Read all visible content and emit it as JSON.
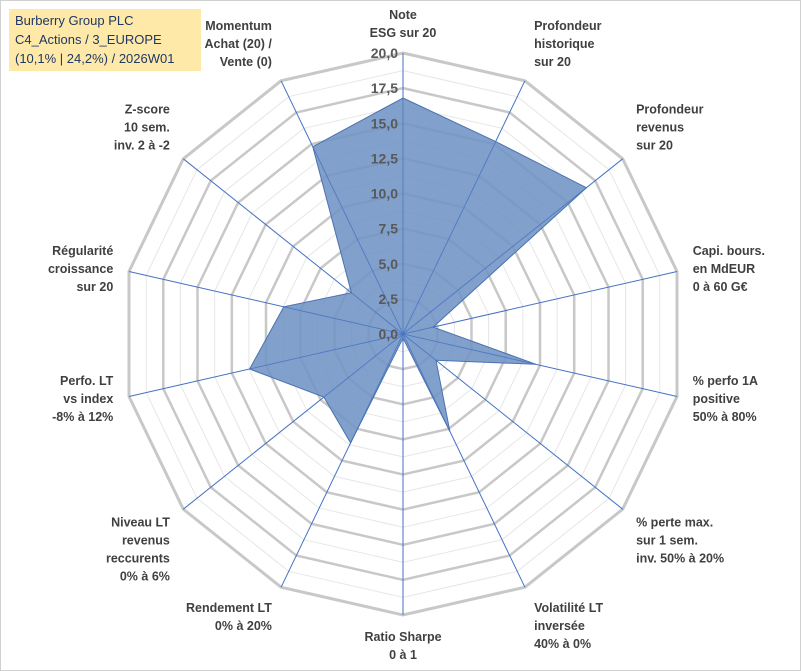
{
  "title_lines": [
    "Burberry Group PLC",
    "C4_Actions / 3_EUROPE",
    "(10,1% | 24,2%) / 2026W01"
  ],
  "chart_data": {
    "type": "radar",
    "rmin": 0,
    "rmax": 20,
    "ticks": [
      "0,0",
      "2,5",
      "5,0",
      "7,5",
      "10,0",
      "12,5",
      "15,0",
      "17,5",
      "20,0"
    ],
    "tick_values": [
      0,
      2.5,
      5,
      7.5,
      10,
      12.5,
      15,
      17.5,
      20
    ],
    "axes": [
      {
        "label": [
          "Note",
          "ESG sur 20"
        ],
        "value": 16.8
      },
      {
        "label": [
          "Profondeur",
          "historique",
          "sur 20"
        ],
        "value": 15.2
      },
      {
        "label": [
          "Profondeur",
          "revenus",
          "sur 20"
        ],
        "value": 16.7
      },
      {
        "label": [
          "Capi. bours.",
          "en MdEUR",
          "0 à 60 G€"
        ],
        "value": 2.2
      },
      {
        "label": [
          "% perfo 1A",
          "positive",
          "50% à 80%"
        ],
        "value": 9.7
      },
      {
        "label": [
          "% perte max.",
          "sur 1 sem.",
          "inv. 50% à 20%"
        ],
        "value": 3.0
      },
      {
        "label": [
          "Volatilité LT",
          "inversée",
          "40% à 0%"
        ],
        "value": 7.7
      },
      {
        "label": [
          "Ratio Sharpe",
          "0 à 1"
        ],
        "value": 0.3
      },
      {
        "label": [
          "Rendement LT",
          "0% à 20%"
        ],
        "value": 8.6
      },
      {
        "label": [
          "Niveau LT",
          "revenus",
          "reccurents",
          "0% à 6%"
        ],
        "value": 7.2
      },
      {
        "label": [
          "Perfo. LT",
          "vs index",
          "-8% à 12%"
        ],
        "value": 11.2
      },
      {
        "label": [
          "Régularité",
          "croissance",
          "sur 20"
        ],
        "value": 8.7
      },
      {
        "label": [
          "Z-score",
          "10 sem.",
          "inv. 2 à -2"
        ],
        "value": 4.7
      },
      {
        "label": [
          "Momentum",
          "Achat (20) /",
          "Vente (0)"
        ],
        "value": 14.8
      }
    ],
    "colors": {
      "fill": "#6f93c4",
      "stroke": "#4a72b0",
      "grid": "#d0d0d0",
      "spoke": "#4472c4"
    }
  }
}
